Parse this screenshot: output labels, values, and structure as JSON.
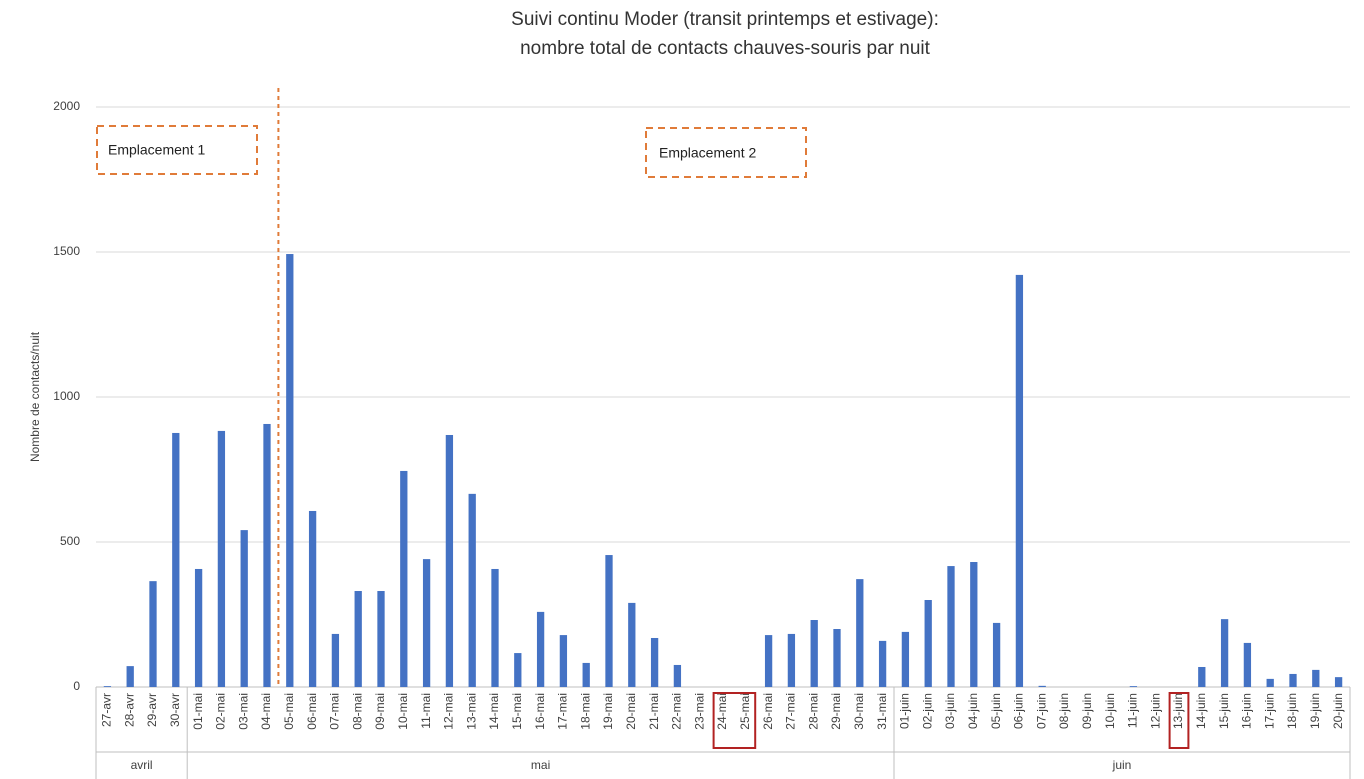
{
  "chart_data": {
    "type": "bar",
    "title": "Suivi continu Moder (transit printemps et estivage):",
    "subtitle": "nombre total de contacts chauves-souris par nuit",
    "y_label": "Nombre de contacts/nuit",
    "annotations": [
      "Emplacement 1",
      "Emplacement 2"
    ],
    "groups": [
      "avril",
      "mai",
      "juin"
    ],
    "categories": [
      "27-avr",
      "28-avr",
      "29-avr",
      "30-avr",
      "01-mai",
      "02-mai",
      "03-mai",
      "04-mai",
      "05-mai",
      "06-mai",
      "07-mai",
      "08-mai",
      "09-mai",
      "10-mai",
      "11-mai",
      "12-mai",
      "13-mai",
      "14-mai",
      "15-mai",
      "16-mai",
      "17-mai",
      "18-mai",
      "19-mai",
      "20-mai",
      "21-mai",
      "22-mai",
      "23-mai",
      "24-mai",
      "25-mai",
      "26-mai",
      "27-mai",
      "28-mai",
      "29-mai",
      "30-mai",
      "31-mai",
      "01-juin",
      "02-juin",
      "03-juin",
      "04-juin",
      "05-juin",
      "06-juin",
      "07-juin",
      "08-juin",
      "09-juin",
      "10-juin",
      "11-juin",
      "12-juin",
      "13-juin",
      "14-juin",
      "15-juin",
      "16-juin",
      "17-juin",
      "18-juin",
      "19-juin",
      "20-juin"
    ],
    "values": [
      3,
      72,
      365,
      876,
      407,
      883,
      541,
      907,
      1493,
      607,
      183,
      331,
      331,
      745,
      441,
      869,
      666,
      407,
      117,
      259,
      179,
      83,
      455,
      290,
      169,
      76,
      0,
      0,
      0,
      179,
      183,
      231,
      200,
      372,
      159,
      190,
      300,
      417,
      431,
      221,
      1421,
      4,
      0,
      0,
      0,
      3,
      0,
      0,
      69,
      234,
      152,
      28,
      45,
      59,
      34
    ],
    "color": "#4472c4",
    "ylim": [
      0,
      2000
    ],
    "yticks": [
      0,
      500,
      1000,
      1500,
      2000
    ],
    "grid": true
  }
}
